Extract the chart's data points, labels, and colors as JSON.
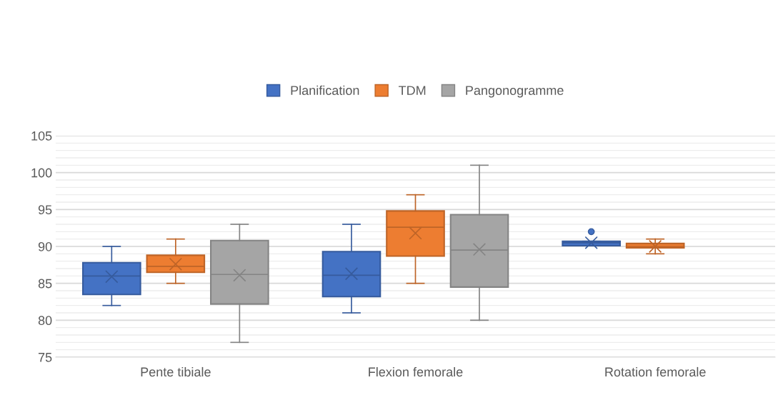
{
  "chart_data": {
    "type": "box",
    "categories": [
      "Pente tibiale",
      "Flexion femorale",
      "Rotation femorale"
    ],
    "series": [
      {
        "name": "Planification",
        "color": "#4472c4",
        "boxes": [
          {
            "low": 82,
            "q1": 83.5,
            "median": 86,
            "q3": 87.8,
            "high": 90,
            "mean": 85.9
          },
          {
            "low": 81,
            "q1": 83.2,
            "median": 86.1,
            "q3": 89.3,
            "high": 93,
            "mean": 86.3
          },
          {
            "low": 90.1,
            "q1": 90.1,
            "median": 90.5,
            "q3": 90.7,
            "high": 90.7,
            "mean": 90.5,
            "outliers": [
              92
            ]
          }
        ]
      },
      {
        "name": "TDM",
        "color": "#ed7d31",
        "boxes": [
          {
            "low": 85,
            "q1": 86.5,
            "median": 87.3,
            "q3": 88.8,
            "high": 91,
            "mean": 87.6
          },
          {
            "low": 85,
            "q1": 88.7,
            "median": 92.6,
            "q3": 94.8,
            "high": 97,
            "mean": 91.8
          },
          {
            "low": 89,
            "q1": 89.8,
            "median": 90,
            "q3": 90.4,
            "high": 91,
            "mean": 90
          }
        ]
      },
      {
        "name": "Pangonogramme",
        "color": "#a5a5a5",
        "boxes": [
          {
            "low": 77,
            "q1": 82.2,
            "median": 86.2,
            "q3": 90.8,
            "high": 93,
            "mean": 86.1
          },
          {
            "low": 80,
            "q1": 84.5,
            "median": 89.5,
            "q3": 94.3,
            "high": 101,
            "mean": 89.6
          },
          null
        ]
      }
    ],
    "ylim": [
      75,
      105
    ],
    "yticks": [
      75,
      80,
      85,
      90,
      95,
      100,
      105
    ],
    "grid": "y",
    "legend": "top"
  }
}
